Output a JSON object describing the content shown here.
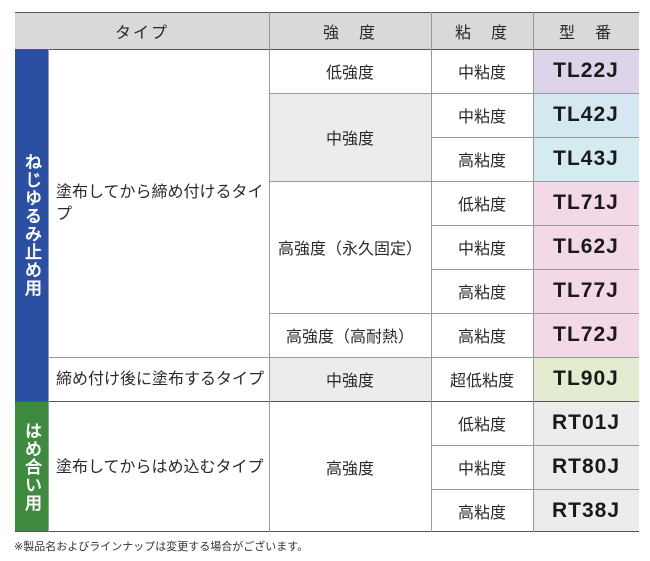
{
  "header": {
    "type": "タイプ",
    "strength": "強　度",
    "viscosity": "粘　度",
    "model": "型　番"
  },
  "groups": [
    {
      "label": "ねじゆるみ止め用",
      "color": "#2b4fa3"
    },
    {
      "label": "はめ合い用",
      "color": "#3e8a3f"
    }
  ],
  "types": [
    "塗布してから締め付けるタイプ",
    "締め付け後に塗布するタイプ",
    "塗布してからはめ込むタイプ"
  ],
  "strengths": [
    "低強度",
    "中強度",
    "高強度（永久固定）",
    "高強度（高耐熱）",
    "中強度",
    "高強度"
  ],
  "rows": [
    {
      "viscosity": "中粘度",
      "model": "TL22J",
      "color": "#ded4ea"
    },
    {
      "viscosity": "中粘度",
      "model": "TL42J",
      "color": "#d4e8f2"
    },
    {
      "viscosity": "高粘度",
      "model": "TL43J",
      "color": "#d4ecef"
    },
    {
      "viscosity": "低粘度",
      "model": "TL71J",
      "color": "#f3d8e8"
    },
    {
      "viscosity": "中粘度",
      "model": "TL62J",
      "color": "#f3d8e8"
    },
    {
      "viscosity": "高粘度",
      "model": "TL77J",
      "color": "#f3d8e8"
    },
    {
      "viscosity": "高粘度",
      "model": "TL72J",
      "color": "#f3d8e8"
    },
    {
      "viscosity": "超低粘度",
      "model": "TL90J",
      "color": "#e3ecd0"
    },
    {
      "viscosity": "低粘度",
      "model": "RT01J",
      "color": "#ececec"
    },
    {
      "viscosity": "中粘度",
      "model": "RT80J",
      "color": "#ececec"
    },
    {
      "viscosity": "高粘度",
      "model": "RT38J",
      "color": "#ececec"
    }
  ],
  "footnote": "※製品名およびラインナップは変更する場合がございます。"
}
